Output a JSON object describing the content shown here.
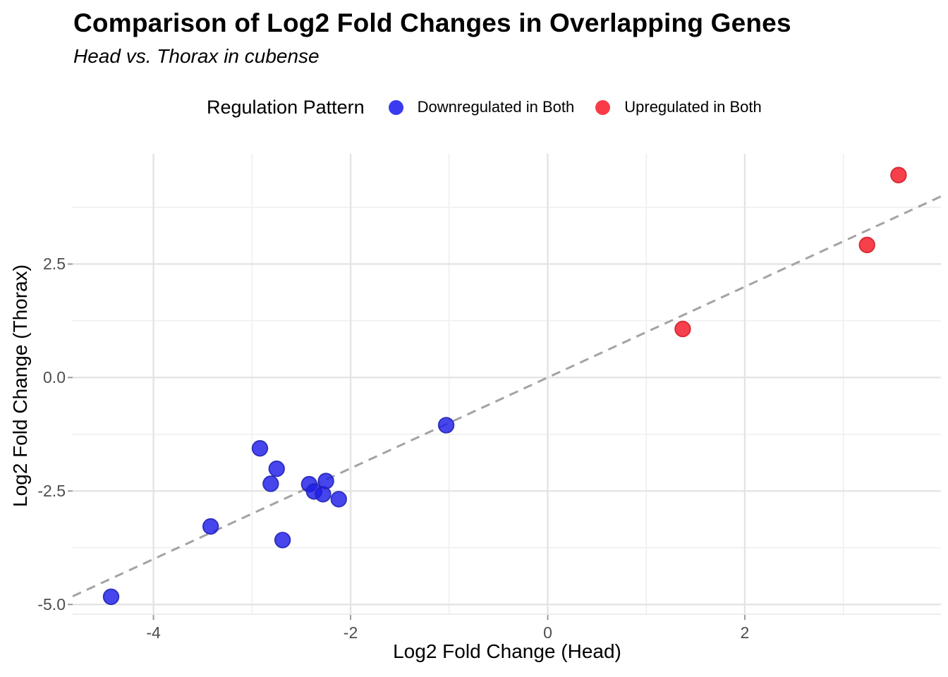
{
  "chart_data": {
    "type": "scatter",
    "title": "Comparison of Log2 Fold Changes in Overlapping Genes",
    "subtitle": "Head vs. Thorax in cubense",
    "xlabel": "Log2 Fold Change (Head)",
    "ylabel": "Log2 Fold Change (Thorax)",
    "legend_title": "Regulation Pattern",
    "legend_position": "top",
    "grid": true,
    "xlim": [
      -4.82,
      3.99
    ],
    "ylim": [
      -5.23,
      4.93
    ],
    "x_major_ticks": [
      -4,
      -2,
      0,
      2
    ],
    "x_tick_labels": [
      "-4",
      "-2",
      "0",
      "2"
    ],
    "x_minor_ticks": [
      -3,
      -1,
      1,
      3
    ],
    "y_major_ticks": [
      2.5,
      0,
      -2.5,
      -5
    ],
    "y_tick_labels": [
      "2.5",
      "0.0",
      "-2.5",
      "-5.0"
    ],
    "y_minor_ticks": [
      3.75,
      1.25,
      -1.25,
      -3.75
    ],
    "reference_line": {
      "type": "identity",
      "slope": 1,
      "intercept": 0,
      "style": "dashed",
      "color": "#a3a3a3"
    },
    "colors": {
      "grid_major": "#e4e4e4",
      "grid_minor": "#efefef",
      "tick_mark": "#9a9a9a",
      "axis_edge": "#e8e8e8"
    },
    "series": [
      {
        "name": "Downregulated in Both",
        "legend_color": "#3a3af1",
        "marker_color": "#1d1de8",
        "marker_opacity": 0.82,
        "marker_stroke": "#2222b8",
        "points": [
          [
            -4.43,
            -4.83
          ],
          [
            -3.42,
            -3.28
          ],
          [
            -2.92,
            -1.56
          ],
          [
            -2.81,
            -2.34
          ],
          [
            -2.75,
            -2.01
          ],
          [
            -2.69,
            -3.58
          ],
          [
            -2.42,
            -2.35
          ],
          [
            -2.37,
            -2.51
          ],
          [
            -2.28,
            -2.57
          ],
          [
            -2.25,
            -2.28
          ],
          [
            -2.12,
            -2.68
          ],
          [
            -1.03,
            -1.05
          ]
        ]
      },
      {
        "name": "Upregulated in Both",
        "legend_color": "#f83b46",
        "marker_color": "#f41f2d",
        "marker_opacity": 0.85,
        "marker_stroke": "#cf1f2a",
        "points": [
          [
            1.37,
            1.07
          ],
          [
            3.24,
            2.92
          ],
          [
            3.56,
            4.46
          ]
        ]
      }
    ]
  }
}
